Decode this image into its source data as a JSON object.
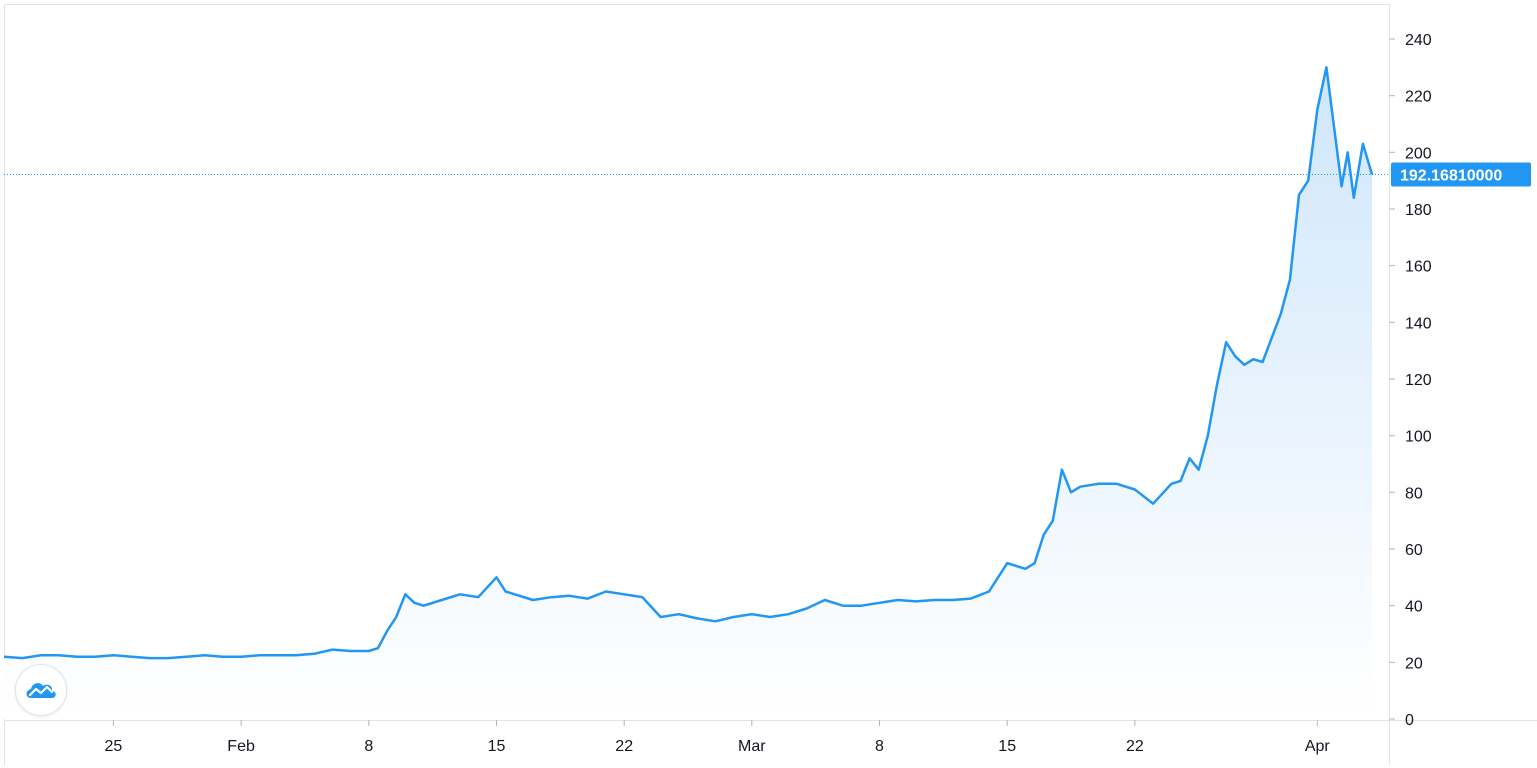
{
  "chart_data": {
    "type": "area",
    "title": "",
    "xlabel": "",
    "ylabel": "",
    "x_tick_labels": [
      "25",
      "Feb",
      "8",
      "15",
      "22",
      "Mar",
      "8",
      "15",
      "22",
      "Apr"
    ],
    "x_tick_dates": [
      "2021-01-25",
      "2021-02-01",
      "2021-02-08",
      "2021-02-15",
      "2021-02-22",
      "2021-03-01",
      "2021-03-08",
      "2021-03-15",
      "2021-03-22",
      "2021-04-01"
    ],
    "y_tick_labels": [
      "240",
      "220",
      "200",
      "180",
      "160",
      "140",
      "120",
      "100",
      "80",
      "60",
      "40",
      "20",
      "0"
    ],
    "ylim": [
      0,
      240
    ],
    "grid": false,
    "last_price_label": "192.16810000",
    "last_price": 192.1681,
    "series": [
      {
        "x": [
          "2021-01-19",
          "2021-01-20",
          "2021-01-21",
          "2021-01-22",
          "2021-01-23",
          "2021-01-24",
          "2021-01-25",
          "2021-01-26",
          "2021-01-27",
          "2021-01-28",
          "2021-01-29",
          "2021-01-30",
          "2021-01-31",
          "2021-02-01",
          "2021-02-02",
          "2021-02-03",
          "2021-02-04",
          "2021-02-05",
          "2021-02-06",
          "2021-02-07",
          "2021-02-08",
          "2021-02-08",
          "2021-02-09",
          "2021-02-09",
          "2021-02-10",
          "2021-02-10",
          "2021-02-11",
          "2021-02-12",
          "2021-02-13",
          "2021-02-14",
          "2021-02-15",
          "2021-02-15",
          "2021-02-16",
          "2021-02-17",
          "2021-02-18",
          "2021-02-19",
          "2021-02-20",
          "2021-02-21",
          "2021-02-22",
          "2021-02-23",
          "2021-02-24",
          "2021-02-25",
          "2021-02-26",
          "2021-02-27",
          "2021-02-28",
          "2021-03-01",
          "2021-03-02",
          "2021-03-03",
          "2021-03-04",
          "2021-03-05",
          "2021-03-06",
          "2021-03-07",
          "2021-03-08",
          "2021-03-09",
          "2021-03-10",
          "2021-03-11",
          "2021-03-12",
          "2021-03-13",
          "2021-03-14",
          "2021-03-15",
          "2021-03-16",
          "2021-03-16",
          "2021-03-17",
          "2021-03-17",
          "2021-03-18",
          "2021-03-18",
          "2021-03-19",
          "2021-03-20",
          "2021-03-21",
          "2021-03-22",
          "2021-03-23",
          "2021-03-24",
          "2021-03-24",
          "2021-03-25",
          "2021-03-25",
          "2021-03-26",
          "2021-03-26",
          "2021-03-27",
          "2021-03-27",
          "2021-03-28",
          "2021-03-28",
          "2021-03-29",
          "2021-03-30",
          "2021-03-30",
          "2021-03-31",
          "2021-03-31",
          "2021-04-01",
          "2021-04-01",
          "2021-04-02",
          "2021-04-02",
          "2021-04-02",
          "2021-04-03",
          "2021-04-03",
          "2021-04-04"
        ],
        "y": [
          22,
          21.5,
          22.5,
          22.5,
          22,
          22,
          22.5,
          22,
          21.5,
          21.5,
          22,
          22.5,
          22,
          22,
          22.5,
          22.5,
          22.5,
          23,
          24.5,
          24,
          24,
          25,
          31,
          36,
          44,
          41,
          40,
          42,
          44,
          43,
          50,
          45,
          44,
          42,
          43,
          43.5,
          42.5,
          45,
          44,
          43,
          36,
          37,
          35.5,
          34.5,
          36,
          37,
          36,
          37,
          39,
          42,
          40,
          40,
          41,
          42,
          41.5,
          42,
          42,
          42.5,
          45,
          55,
          53,
          55,
          65,
          70,
          88,
          80,
          82,
          83,
          83,
          81,
          76,
          83,
          84,
          92,
          88,
          100,
          118,
          133,
          128,
          125,
          127,
          126,
          143,
          155,
          185,
          190,
          215,
          230,
          205,
          188,
          200,
          184,
          203,
          192.17
        ]
      }
    ],
    "colors": {
      "line": "#2196f3",
      "area_top": "#cfe6fb",
      "area_bottom": "#ffffff",
      "price_label_bg": "#2196f3",
      "axis_text": "#131722"
    },
    "plot_style": "area with dotted last-price line and right-side price label"
  },
  "ui": {
    "logo_icon": "tradingview-cloud-icon"
  }
}
